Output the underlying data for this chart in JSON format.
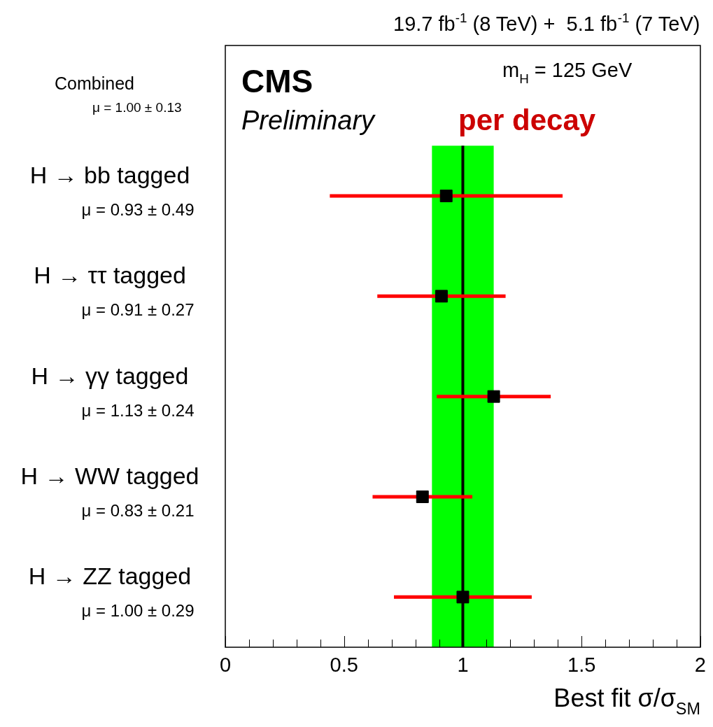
{
  "chart_data": {
    "type": "scatter",
    "orientation": "horizontal",
    "title": "19.7 fb$^{-1}$ (8 TeV) +  5.1 fb$^{-1}$ (7 TeV)",
    "xlabel": "Best fit σ/σ$_{SM}$",
    "categories": [
      "H → bb tagged",
      "H → ττ tagged",
      "H → γγ tagged",
      "H → WW tagged",
      "H → ZZ tagged"
    ],
    "series": [
      {
        "color": "#000000",
        "values": [
          0.93,
          0.91,
          1.13,
          0.83,
          1.0
        ],
        "errors": [
          0.49,
          0.27,
          0.24,
          0.21,
          0.29
        ],
        "value_labels": [
          "μ = 0.93 ± 0.49",
          "μ = 0.91 ± 0.27",
          "μ = 1.13 ± 0.24",
          "μ = 0.83 ± 0.21",
          "μ = 1.00 ± 0.29"
        ]
      }
    ],
    "marker": "square",
    "xlim": [
      0,
      2
    ],
    "xticks": [
      0,
      {
        "value": 0.1,
        "label": null
      },
      {
        "value": 0.2,
        "label": null
      },
      {
        "value": 0.3,
        "label": null
      },
      {
        "value": 0.4,
        "label": null
      },
      0.5,
      {
        "value": 0.6,
        "label": null
      },
      {
        "value": 0.7,
        "label": null
      },
      {
        "value": 0.8,
        "label": null
      },
      {
        "value": 0.9,
        "label": null
      },
      1,
      {
        "value": 1.1,
        "label": null
      },
      {
        "value": 1.2,
        "label": null
      },
      {
        "value": 1.3,
        "label": null
      },
      {
        "value": 1.4,
        "label": null
      },
      1.5,
      {
        "value": 1.6,
        "label": null
      },
      {
        "value": 1.7,
        "label": null
      },
      {
        "value": 1.8,
        "label": null
      },
      {
        "value": 1.9,
        "label": null
      },
      2
    ],
    "bands": [
      {
        "axis": "x",
        "from": 0.87,
        "to": 1.13,
        "color": "#00ff00"
      }
    ],
    "ref_lines": [
      {
        "axis": "x",
        "value": 1,
        "color": "#000000"
      }
    ],
    "annotations": [
      "CMS",
      "Preliminary",
      "m$_{H}$ = 125 GeV",
      "per decay",
      "Combined",
      "μ = 1.00 ± 0.13"
    ],
    "legend": false,
    "grid": false
  }
}
